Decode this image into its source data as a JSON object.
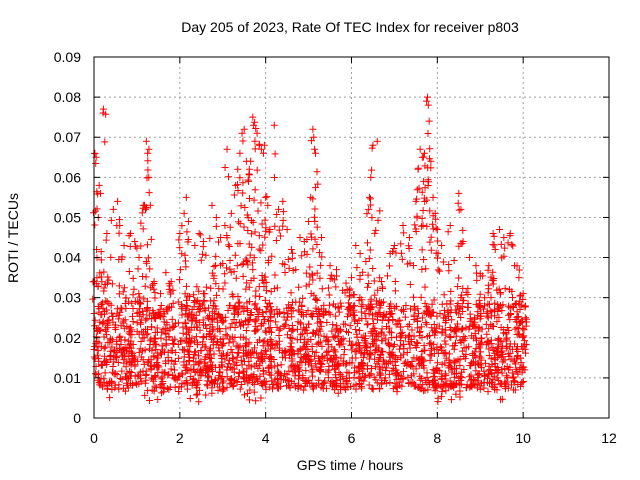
{
  "chart_data": {
    "type": "scatter",
    "title": "Day 205 of 2023, Rate Of TEC Index for receiver p803",
    "xlabel": "GPS time / hours",
    "ylabel": "ROTI / TECUs",
    "xlim": [
      0,
      12
    ],
    "ylim": [
      0,
      0.09
    ],
    "x_ticks": [
      0,
      2,
      4,
      6,
      8,
      10,
      12
    ],
    "x_tick_labels": [
      "0",
      "2",
      "4",
      "6",
      "8",
      "10",
      "12"
    ],
    "y_ticks": [
      0,
      0.01,
      0.02,
      0.03,
      0.04,
      0.05,
      0.06,
      0.07,
      0.08,
      0.09
    ],
    "y_tick_labels": [
      "0",
      "0.01",
      "0.02",
      "0.03",
      "0.04",
      "0.05",
      "0.06",
      "0.07",
      "0.08",
      "0.09"
    ],
    "grid": true,
    "marker": "+",
    "colors": {
      "series": "#ff0000",
      "grid": "#a0a0a0",
      "axis": "#000000"
    },
    "series": [
      {
        "name": "ROTI",
        "data_extent": {
          "x_range": [
            0,
            10.05
          ],
          "typical_y_range": [
            0.005,
            0.03
          ]
        },
        "points": [
          [
            0.02,
            0.066
          ],
          [
            0.05,
            0.065
          ],
          [
            0.12,
            0.058
          ],
          [
            0.15,
            0.056
          ],
          [
            0.22,
            0.077
          ],
          [
            0.1,
            0.05
          ],
          [
            0.06,
            0.042
          ],
          [
            0.3,
            0.046
          ],
          [
            0.45,
            0.052
          ],
          [
            0.55,
            0.054
          ],
          [
            0.6,
            0.048
          ],
          [
            0.7,
            0.043
          ],
          [
            0.85,
            0.046
          ],
          [
            0.95,
            0.044
          ],
          [
            1.05,
            0.04
          ],
          [
            1.15,
            0.053
          ],
          [
            1.2,
            0.052
          ],
          [
            1.22,
            0.069
          ],
          [
            1.25,
            0.066
          ],
          [
            1.28,
            0.067
          ],
          [
            1.4,
            0.034
          ],
          [
            1.55,
            0.031
          ],
          [
            1.8,
            0.034
          ],
          [
            2.0,
            0.046
          ],
          [
            2.1,
            0.051
          ],
          [
            2.15,
            0.055
          ],
          [
            2.2,
            0.049
          ],
          [
            2.35,
            0.043
          ],
          [
            2.45,
            0.046
          ],
          [
            2.55,
            0.044
          ],
          [
            2.75,
            0.053
          ],
          [
            2.85,
            0.05
          ],
          [
            2.95,
            0.045
          ],
          [
            3.05,
            0.048
          ],
          [
            3.1,
            0.067
          ],
          [
            3.2,
            0.051
          ],
          [
            3.3,
            0.058
          ],
          [
            3.35,
            0.062
          ],
          [
            3.4,
            0.066
          ],
          [
            3.45,
            0.071
          ],
          [
            3.5,
            0.072
          ],
          [
            3.55,
            0.064
          ],
          [
            3.6,
            0.059
          ],
          [
            3.62,
            0.062
          ],
          [
            3.65,
            0.064
          ],
          [
            3.7,
            0.075
          ],
          [
            3.72,
            0.073
          ],
          [
            3.75,
            0.069
          ],
          [
            3.8,
            0.071
          ],
          [
            3.85,
            0.068
          ],
          [
            3.9,
            0.067
          ],
          [
            3.95,
            0.066
          ],
          [
            3.97,
            0.068
          ],
          [
            4.0,
            0.055
          ],
          [
            4.05,
            0.053
          ],
          [
            4.1,
            0.047
          ],
          [
            4.2,
            0.073
          ],
          [
            4.3,
            0.052
          ],
          [
            4.4,
            0.054
          ],
          [
            4.5,
            0.047
          ],
          [
            4.6,
            0.042
          ],
          [
            4.8,
            0.045
          ],
          [
            4.9,
            0.044
          ],
          [
            5.0,
            0.049
          ],
          [
            5.05,
            0.055
          ],
          [
            5.1,
            0.072
          ],
          [
            5.12,
            0.07
          ],
          [
            5.14,
            0.067
          ],
          [
            5.16,
            0.066
          ],
          [
            5.3,
            0.045
          ],
          [
            5.5,
            0.038
          ],
          [
            5.65,
            0.037
          ],
          [
            5.9,
            0.032
          ],
          [
            6.0,
            0.035
          ],
          [
            6.1,
            0.043
          ],
          [
            6.2,
            0.041
          ],
          [
            6.4,
            0.052
          ],
          [
            6.42,
            0.055
          ],
          [
            6.45,
            0.06
          ],
          [
            6.5,
            0.068
          ],
          [
            6.6,
            0.069
          ],
          [
            6.7,
            0.034
          ],
          [
            6.9,
            0.041
          ],
          [
            7.0,
            0.043
          ],
          [
            7.2,
            0.048
          ],
          [
            7.35,
            0.045
          ],
          [
            7.5,
            0.054
          ],
          [
            7.55,
            0.062
          ],
          [
            7.6,
            0.067
          ],
          [
            7.65,
            0.065
          ],
          [
            7.68,
            0.059
          ],
          [
            7.7,
            0.066
          ],
          [
            7.75,
            0.079
          ],
          [
            7.77,
            0.08
          ],
          [
            7.79,
            0.078
          ],
          [
            7.81,
            0.074
          ],
          [
            7.85,
            0.064
          ],
          [
            7.9,
            0.055
          ],
          [
            7.95,
            0.051
          ],
          [
            8.0,
            0.047
          ],
          [
            8.1,
            0.043
          ],
          [
            8.3,
            0.048
          ],
          [
            8.5,
            0.056
          ],
          [
            8.55,
            0.052
          ],
          [
            8.6,
            0.044
          ],
          [
            8.75,
            0.04
          ],
          [
            8.9,
            0.038
          ],
          [
            9.0,
            0.036
          ],
          [
            9.2,
            0.038
          ],
          [
            9.3,
            0.046
          ],
          [
            9.35,
            0.042
          ],
          [
            9.45,
            0.047
          ],
          [
            9.55,
            0.045
          ],
          [
            9.7,
            0.046
          ],
          [
            9.8,
            0.038
          ],
          [
            9.9,
            0.035
          ],
          [
            10.0,
            0.031
          ],
          [
            10.02,
            0.022
          ],
          [
            10.04,
            0.012
          ]
        ]
      }
    ]
  }
}
